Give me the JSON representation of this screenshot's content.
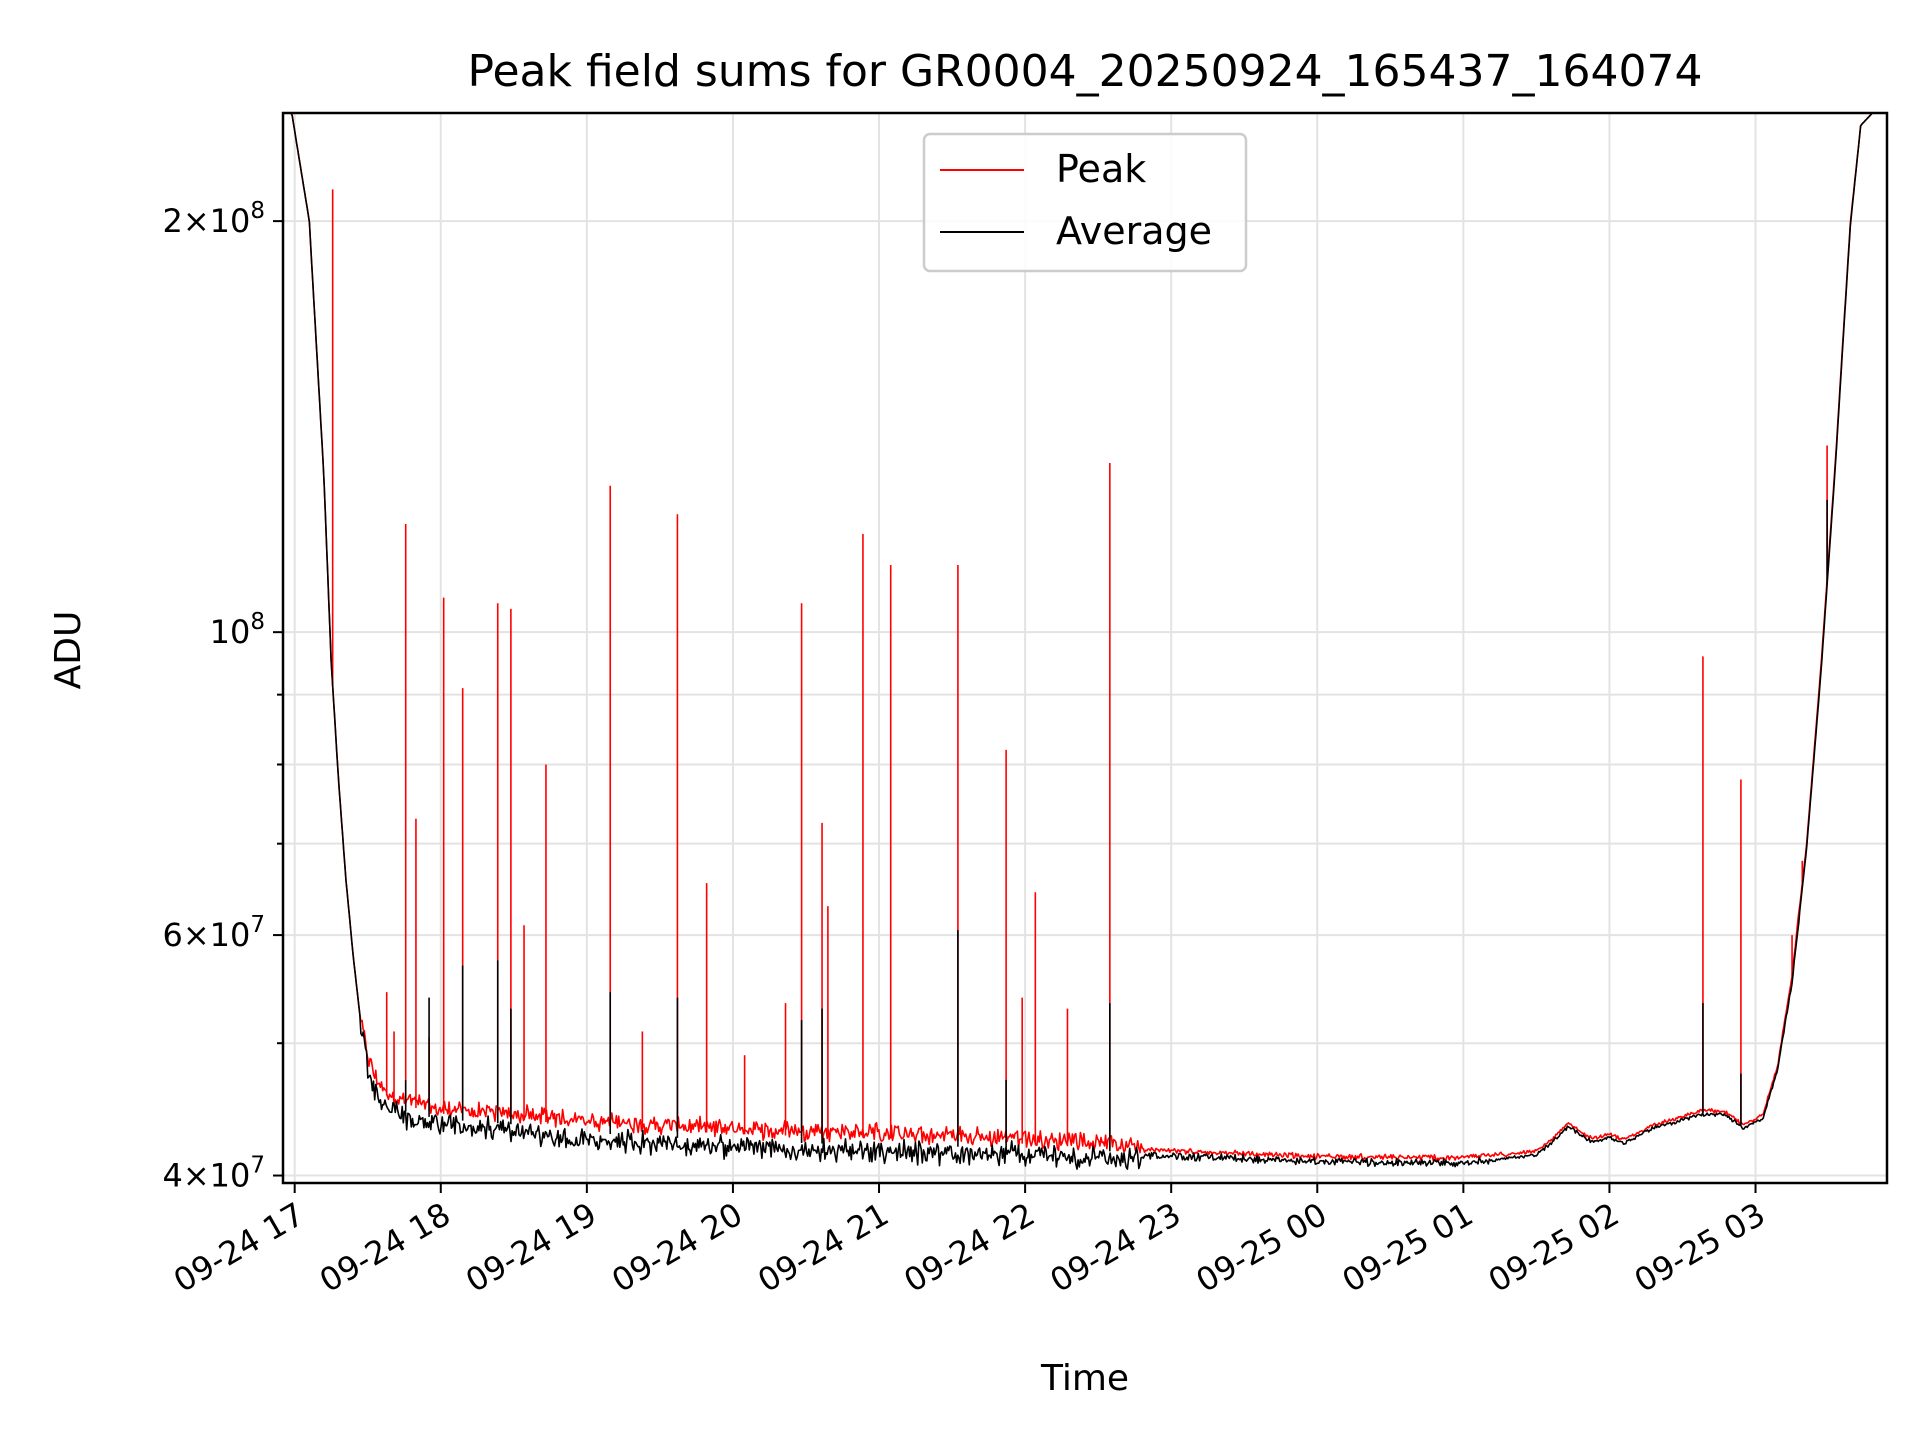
{
  "chart_data": {
    "type": "line",
    "title": "Peak field sums for GR0004_20250924_165437_164074",
    "xlabel": "Time",
    "ylabel": "ADU",
    "yscale": "log",
    "ylim": [
      39500000,
      240000000
    ],
    "xlim_hours": [
      -0.08,
      10.9
    ],
    "grid": true,
    "legend_position": "top-center",
    "x_ticks": [
      {
        "hour": 0,
        "label": "09-24 17"
      },
      {
        "hour": 1,
        "label": "09-24 18"
      },
      {
        "hour": 2,
        "label": "09-24 19"
      },
      {
        "hour": 3,
        "label": "09-24 20"
      },
      {
        "hour": 4,
        "label": "09-24 21"
      },
      {
        "hour": 5,
        "label": "09-24 22"
      },
      {
        "hour": 6,
        "label": "09-24 23"
      },
      {
        "hour": 7,
        "label": "09-25 00"
      },
      {
        "hour": 8,
        "label": "09-25 01"
      },
      {
        "hour": 9,
        "label": "09-25 02"
      },
      {
        "hour": 10,
        "label": "09-25 03"
      }
    ],
    "y_ticks": [
      {
        "value": 40000000,
        "mant": "4",
        "exp": "7"
      },
      {
        "value": 60000000,
        "mant": "6",
        "exp": "7"
      },
      {
        "value": 100000000,
        "mant": "",
        "exp": "8"
      },
      {
        "value": 200000000,
        "mant": "2",
        "exp": "8"
      }
    ],
    "y_minor_ticks": [
      50000000,
      70000000,
      80000000,
      90000000
    ],
    "tick_base": "10",
    "times_sign": "×",
    "series": [
      {
        "name": "Peak",
        "color": "#ff0000",
        "baseline_hours": [
          -0.07,
          -0.02,
          0.1,
          0.2,
          0.25,
          0.3,
          0.35,
          0.4,
          0.45,
          0.5,
          0.55,
          0.6,
          0.7,
          0.8,
          1.0,
          1.5,
          2.0,
          3.0,
          4.0,
          5.0,
          6.0,
          7.0,
          8.0,
          8.5,
          8.6,
          8.72,
          8.8,
          8.88,
          9.0,
          9.1,
          9.3,
          9.45,
          9.55,
          9.68,
          9.8,
          9.92,
          10.05,
          10.15,
          10.25,
          10.35,
          10.45,
          10.55,
          10.6,
          10.65,
          10.72,
          10.8,
          10.9
        ],
        "baseline_values": [
          240000000,
          240000000,
          200000000,
          130000000,
          95000000,
          78000000,
          66000000,
          58000000,
          52000000,
          48500000,
          46800000,
          46000000,
          45300000,
          44900000,
          44400000,
          44000000,
          43500000,
          42900000,
          42600000,
          42200000,
          41600000,
          41200000,
          41100000,
          41600000,
          42400000,
          43600000,
          43000000,
          42500000,
          42800000,
          42400000,
          43500000,
          43900000,
          44300000,
          44600000,
          44400000,
          43500000,
          44200000,
          48000000,
          56000000,
          70000000,
          95000000,
          135000000,
          165000000,
          200000000,
          235000000,
          240000000,
          240000000
        ],
        "spikes": [
          {
            "hour": 0.26,
            "value": 211000000
          },
          {
            "hour": 0.63,
            "value": 54500000
          },
          {
            "hour": 0.68,
            "value": 51000000
          },
          {
            "hour": 0.76,
            "value": 120000000
          },
          {
            "hour": 0.83,
            "value": 73000000
          },
          {
            "hour": 0.92,
            "value": 50500000
          },
          {
            "hour": 1.02,
            "value": 106000000
          },
          {
            "hour": 1.15,
            "value": 91000000
          },
          {
            "hour": 1.39,
            "value": 105000000
          },
          {
            "hour": 1.48,
            "value": 104000000
          },
          {
            "hour": 1.57,
            "value": 61000000
          },
          {
            "hour": 1.72,
            "value": 80000000
          },
          {
            "hour": 2.16,
            "value": 128000000
          },
          {
            "hour": 2.38,
            "value": 51000000
          },
          {
            "hour": 2.62,
            "value": 122000000
          },
          {
            "hour": 2.82,
            "value": 65500000
          },
          {
            "hour": 3.08,
            "value": 49000000
          },
          {
            "hour": 3.36,
            "value": 53500000
          },
          {
            "hour": 3.47,
            "value": 105000000
          },
          {
            "hour": 3.61,
            "value": 72500000
          },
          {
            "hour": 3.65,
            "value": 63000000
          },
          {
            "hour": 3.89,
            "value": 118000000
          },
          {
            "hour": 4.08,
            "value": 112000000
          },
          {
            "hour": 4.54,
            "value": 112000000
          },
          {
            "hour": 4.87,
            "value": 82000000
          },
          {
            "hour": 4.98,
            "value": 54000000
          },
          {
            "hour": 5.07,
            "value": 64500000
          },
          {
            "hour": 5.29,
            "value": 53000000
          },
          {
            "hour": 5.58,
            "value": 133000000
          },
          {
            "hour": 9.64,
            "value": 96000000
          },
          {
            "hour": 9.9,
            "value": 78000000
          },
          {
            "hour": 10.25,
            "value": 60000000
          },
          {
            "hour": 10.32,
            "value": 68000000
          },
          {
            "hour": 10.49,
            "value": 137000000
          }
        ]
      },
      {
        "name": "Average",
        "color": "#000000",
        "baseline_hours": [
          -0.07,
          -0.02,
          0.1,
          0.2,
          0.25,
          0.3,
          0.35,
          0.4,
          0.45,
          0.5,
          0.55,
          0.6,
          0.7,
          0.8,
          1.0,
          1.5,
          2.0,
          3.0,
          4.0,
          5.0,
          6.0,
          7.0,
          8.0,
          8.5,
          8.6,
          8.72,
          8.8,
          8.88,
          9.0,
          9.1,
          9.3,
          9.45,
          9.55,
          9.68,
          9.8,
          9.92,
          10.05,
          10.15,
          10.25,
          10.35,
          10.45,
          10.55,
          10.6,
          10.65,
          10.72,
          10.8,
          10.9
        ],
        "baseline_values": [
          240000000,
          240000000,
          200000000,
          130000000,
          95000000,
          78000000,
          66000000,
          58000000,
          52000000,
          48500000,
          46500000,
          45500000,
          44800000,
          44400000,
          44000000,
          43600000,
          43000000,
          42400000,
          42100000,
          41900000,
          41500000,
          41100000,
          41000000,
          41500000,
          42300000,
          43500000,
          42900000,
          42400000,
          42700000,
          42300000,
          43400000,
          43800000,
          44200000,
          44500000,
          44300000,
          43400000,
          44100000,
          47800000,
          55500000,
          69500000,
          94000000,
          134000000,
          164000000,
          199000000,
          235000000,
          240000000,
          240000000
        ],
        "spikes": [
          {
            "hour": 0.76,
            "value": 47000000
          },
          {
            "hour": 0.92,
            "value": 54000000
          },
          {
            "hour": 1.15,
            "value": 57000000
          },
          {
            "hour": 1.39,
            "value": 57500000
          },
          {
            "hour": 1.48,
            "value": 53000000
          },
          {
            "hour": 2.16,
            "value": 54500000
          },
          {
            "hour": 2.62,
            "value": 54000000
          },
          {
            "hour": 3.47,
            "value": 52000000
          },
          {
            "hour": 3.61,
            "value": 53000000
          },
          {
            "hour": 4.54,
            "value": 60500000
          },
          {
            "hour": 4.87,
            "value": 47000000
          },
          {
            "hour": 5.58,
            "value": 53500000
          },
          {
            "hour": 9.64,
            "value": 53500000
          },
          {
            "hour": 9.9,
            "value": 47500000
          },
          {
            "hour": 10.49,
            "value": 125000000
          }
        ]
      }
    ]
  }
}
